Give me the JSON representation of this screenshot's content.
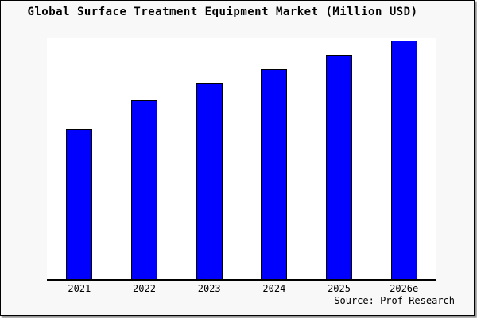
{
  "chart_data": {
    "type": "bar",
    "title": "Global Surface Treatment Equipment Market (Million USD)",
    "categories": [
      "2021",
      "2022",
      "2023",
      "2024",
      "2025",
      "2026e"
    ],
    "values": [
      63,
      75,
      82,
      88,
      94,
      100
    ],
    "values_note": "y-axis has no tick labels in the image; values are estimated relative heights with the tallest (2026e) bar = 100",
    "xlabel": "",
    "ylabel": "",
    "ylim": [
      0,
      101
    ],
    "grid": false,
    "legend": false,
    "source": "Source: Prof Research",
    "colors": {
      "bar_fill": "#0000ff",
      "bar_edge": "#000000",
      "axis_line": "#000000",
      "figure_background": "#f8f8f8",
      "plot_background": "#ffffff",
      "frame_border": "#000000",
      "text": "#000000"
    }
  }
}
